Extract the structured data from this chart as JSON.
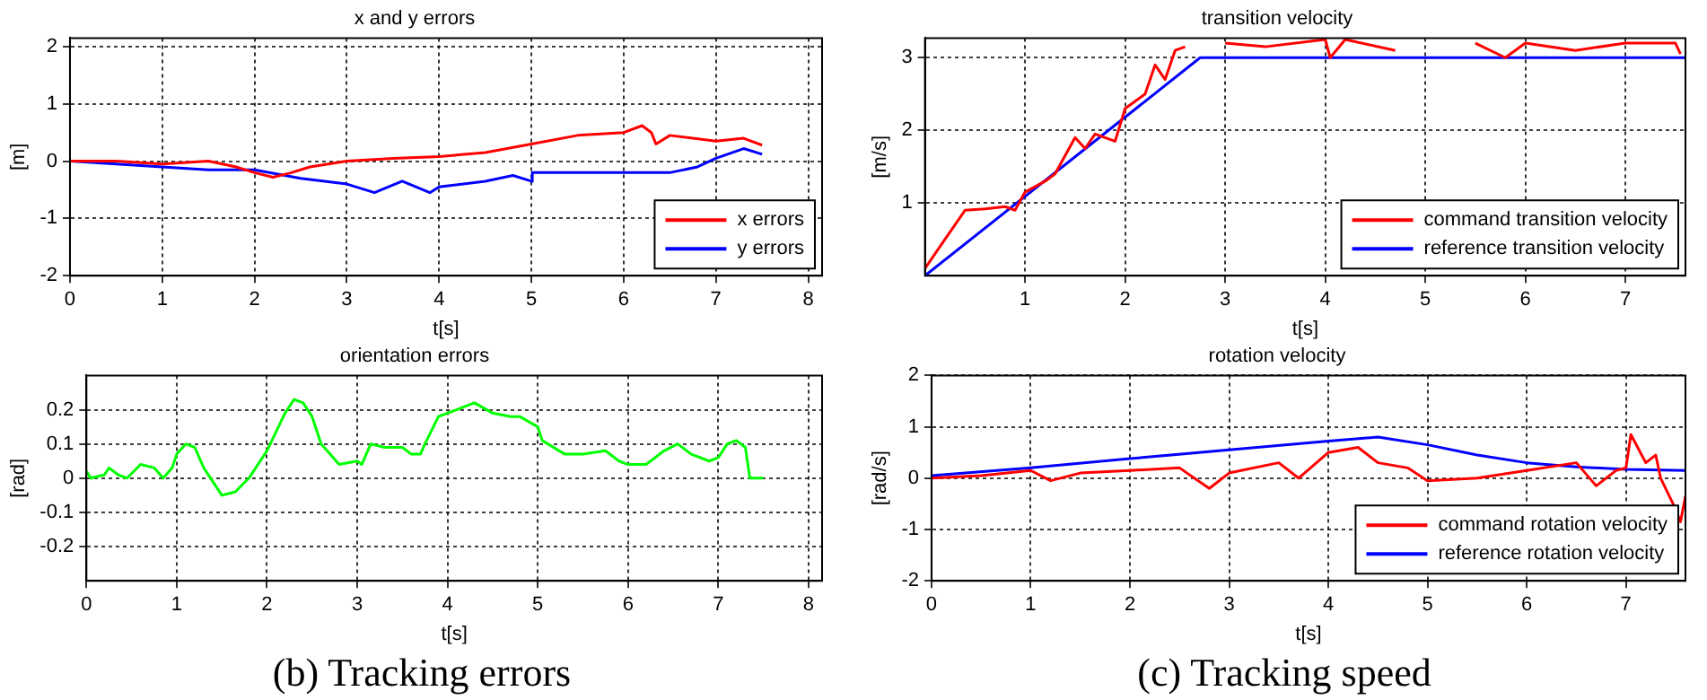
{
  "chart_data": [
    {
      "type": "line",
      "title": "x and y errors",
      "xlabel": "t[s]",
      "ylabel": "[m]",
      "xlim": [
        0,
        8.15
      ],
      "xticks": [
        0,
        1,
        2,
        3,
        4,
        5,
        6,
        7,
        8
      ],
      "ylim": [
        -2,
        2.15
      ],
      "yticks": [
        -2,
        -1,
        0,
        1,
        2
      ],
      "grid": true,
      "legend": "bottom right",
      "line_style": "solid",
      "marker": "none",
      "series": [
        {
          "name": "x errors",
          "color": "#ff0000",
          "x": [
            0,
            0.5,
            1,
            1.5,
            1.8,
            2,
            2.2,
            2.4,
            2.6,
            3,
            3.5,
            4,
            4.5,
            5,
            5.5,
            6,
            6.2,
            6.3,
            6.35,
            6.5,
            7,
            7.3,
            7.5
          ],
          "values": [
            0,
            0,
            -0.05,
            0,
            -0.1,
            -0.2,
            -0.28,
            -0.2,
            -0.1,
            0,
            0.05,
            0.08,
            0.15,
            0.3,
            0.45,
            0.5,
            0.62,
            0.5,
            0.3,
            0.45,
            0.35,
            0.4,
            0.28
          ]
        },
        {
          "name": "y errors",
          "color": "#0000ff",
          "x": [
            0,
            1,
            1.5,
            2,
            2.5,
            3,
            3.3,
            3.6,
            3.9,
            4,
            4.5,
            4.8,
            5,
            5.01,
            6,
            6.5,
            6.8,
            7,
            7.3,
            7.5
          ],
          "values": [
            0,
            -0.1,
            -0.15,
            -0.15,
            -0.3,
            -0.4,
            -0.55,
            -0.35,
            -0.55,
            -0.45,
            -0.35,
            -0.25,
            -0.35,
            -0.2,
            -0.2,
            -0.2,
            -0.1,
            0.05,
            0.22,
            0.12
          ]
        }
      ]
    },
    {
      "type": "line",
      "title": "orientation errors",
      "xlabel": "t[s]",
      "ylabel": "[rad]",
      "xlim": [
        0,
        8.15
      ],
      "xticks": [
        0,
        1,
        2,
        3,
        4,
        5,
        6,
        7,
        8
      ],
      "ylim": [
        -0.3,
        0.3
      ],
      "yticks": [
        -0.2,
        -0.1,
        0,
        0.1,
        0.2
      ],
      "grid": true,
      "line_style": "solid",
      "marker": "none",
      "annotations": [
        "(b)  Tracking errors"
      ],
      "series": [
        {
          "color": "#00ff00",
          "x": [
            0,
            0.05,
            0.2,
            0.25,
            0.35,
            0.45,
            0.6,
            0.75,
            0.85,
            0.95,
            1.0,
            1.1,
            1.2,
            1.3,
            1.5,
            1.65,
            1.8,
            2.0,
            2.2,
            2.3,
            2.4,
            2.5,
            2.6,
            2.7,
            2.8,
            3.0,
            3.05,
            3.15,
            3.3,
            3.5,
            3.6,
            3.7,
            3.75,
            3.9,
            4.0,
            4.2,
            4.3,
            4.5,
            4.7,
            4.8,
            5.0,
            5.05,
            5.3,
            5.5,
            5.75,
            5.9,
            6.0,
            6.2,
            6.4,
            6.55,
            6.7,
            6.9,
            7.0,
            7.1,
            7.2,
            7.3,
            7.35,
            7.5
          ],
          "values": [
            0.02,
            0,
            0.01,
            0.03,
            0.01,
            0,
            0.04,
            0.03,
            0,
            0.03,
            0.07,
            0.1,
            0.09,
            0.03,
            -0.05,
            -0.04,
            0,
            0.08,
            0.19,
            0.23,
            0.22,
            0.18,
            0.1,
            0.07,
            0.04,
            0.05,
            0.04,
            0.1,
            0.09,
            0.09,
            0.07,
            0.07,
            0.1,
            0.18,
            0.19,
            0.21,
            0.22,
            0.19,
            0.18,
            0.18,
            0.15,
            0.11,
            0.07,
            0.07,
            0.08,
            0.05,
            0.04,
            0.04,
            0.08,
            0.1,
            0.07,
            0.05,
            0.06,
            0.1,
            0.11,
            0.09,
            0,
            0
          ]
        }
      ]
    },
    {
      "type": "line",
      "title": "transition velocity",
      "xlabel": "t[s]",
      "ylabel": "[m/s]",
      "xlim": [
        0,
        7.6
      ],
      "xticks": [
        1,
        2,
        3,
        4,
        5,
        6,
        7
      ],
      "ylim": [
        0,
        3.27
      ],
      "yticks": [
        1,
        2,
        3
      ],
      "grid": true,
      "legend": "bottom right",
      "line_style": "solid",
      "marker": "none",
      "series": [
        {
          "name": "command transition velocity",
          "color": "#ff0000",
          "x": [
            0,
            0.2,
            0.4,
            0.6,
            0.8,
            0.9,
            1.0,
            1.2,
            1.3,
            1.5,
            1.6,
            1.7,
            1.9,
            2.0,
            2.2,
            2.3,
            2.4,
            2.5,
            2.6,
            2.75,
            3,
            3.4,
            4,
            4.05,
            4.2,
            4.7,
            5,
            5.5,
            5.8,
            6,
            6.5,
            7,
            7.5,
            7.55
          ],
          "values": [
            0.1,
            0.5,
            0.9,
            0.92,
            0.95,
            0.9,
            1.15,
            1.3,
            1.4,
            1.9,
            1.75,
            1.95,
            1.85,
            2.3,
            2.5,
            2.9,
            2.7,
            3.1,
            3.15,
            null,
            3.2,
            3.15,
            3.25,
            3.0,
            3.25,
            3.1,
            null,
            3.2,
            3.0,
            3.2,
            3.1,
            3.2,
            3.2,
            3.05
          ]
        },
        {
          "name": "reference transition velocity",
          "color": "#0000ff",
          "x": [
            0,
            2.75,
            7.6
          ],
          "values": [
            0,
            3,
            3
          ]
        }
      ]
    },
    {
      "type": "line",
      "title": "rotation velocity",
      "xlabel": "t[s]",
      "ylabel": "[rad/s]",
      "xlim": [
        0,
        7.6
      ],
      "xticks": [
        0,
        1,
        2,
        3,
        4,
        5,
        6,
        7
      ],
      "ylim": [
        -2,
        2
      ],
      "yticks": [
        -2,
        -1,
        0,
        1,
        2
      ],
      "grid": true,
      "legend": "bottom right",
      "line_style": "solid",
      "marker": "none",
      "annotations": [
        "(c)  Tracking speed"
      ],
      "series": [
        {
          "name": "command rotation velocity",
          "color": "#ff0000",
          "x": [
            0,
            0.5,
            1,
            1.2,
            1.5,
            2,
            2.5,
            2.8,
            3,
            3.5,
            3.7,
            4,
            4.3,
            4.5,
            4.8,
            5,
            5.5,
            6,
            6.5,
            6.7,
            6.9,
            7.0,
            7.05,
            7.2,
            7.3,
            7.35,
            7.5,
            7.55,
            7.6
          ],
          "values": [
            0,
            0.05,
            0.15,
            -0.05,
            0.1,
            0.15,
            0.2,
            -0.2,
            0.1,
            0.3,
            0,
            0.5,
            0.6,
            0.3,
            0.2,
            -0.05,
            0,
            0.15,
            0.3,
            -0.15,
            0.15,
            0.2,
            0.85,
            0.3,
            0.45,
            0,
            -0.6,
            -0.85,
            -0.35
          ]
        },
        {
          "name": "reference rotation velocity",
          "color": "#0000ff",
          "x": [
            0,
            1,
            2,
            3,
            4,
            4.5,
            5,
            5.5,
            6,
            6.5,
            7,
            7.6
          ],
          "values": [
            0.05,
            0.2,
            0.38,
            0.55,
            0.72,
            0.8,
            0.65,
            0.45,
            0.3,
            0.22,
            0.17,
            0.15
          ]
        }
      ]
    }
  ]
}
